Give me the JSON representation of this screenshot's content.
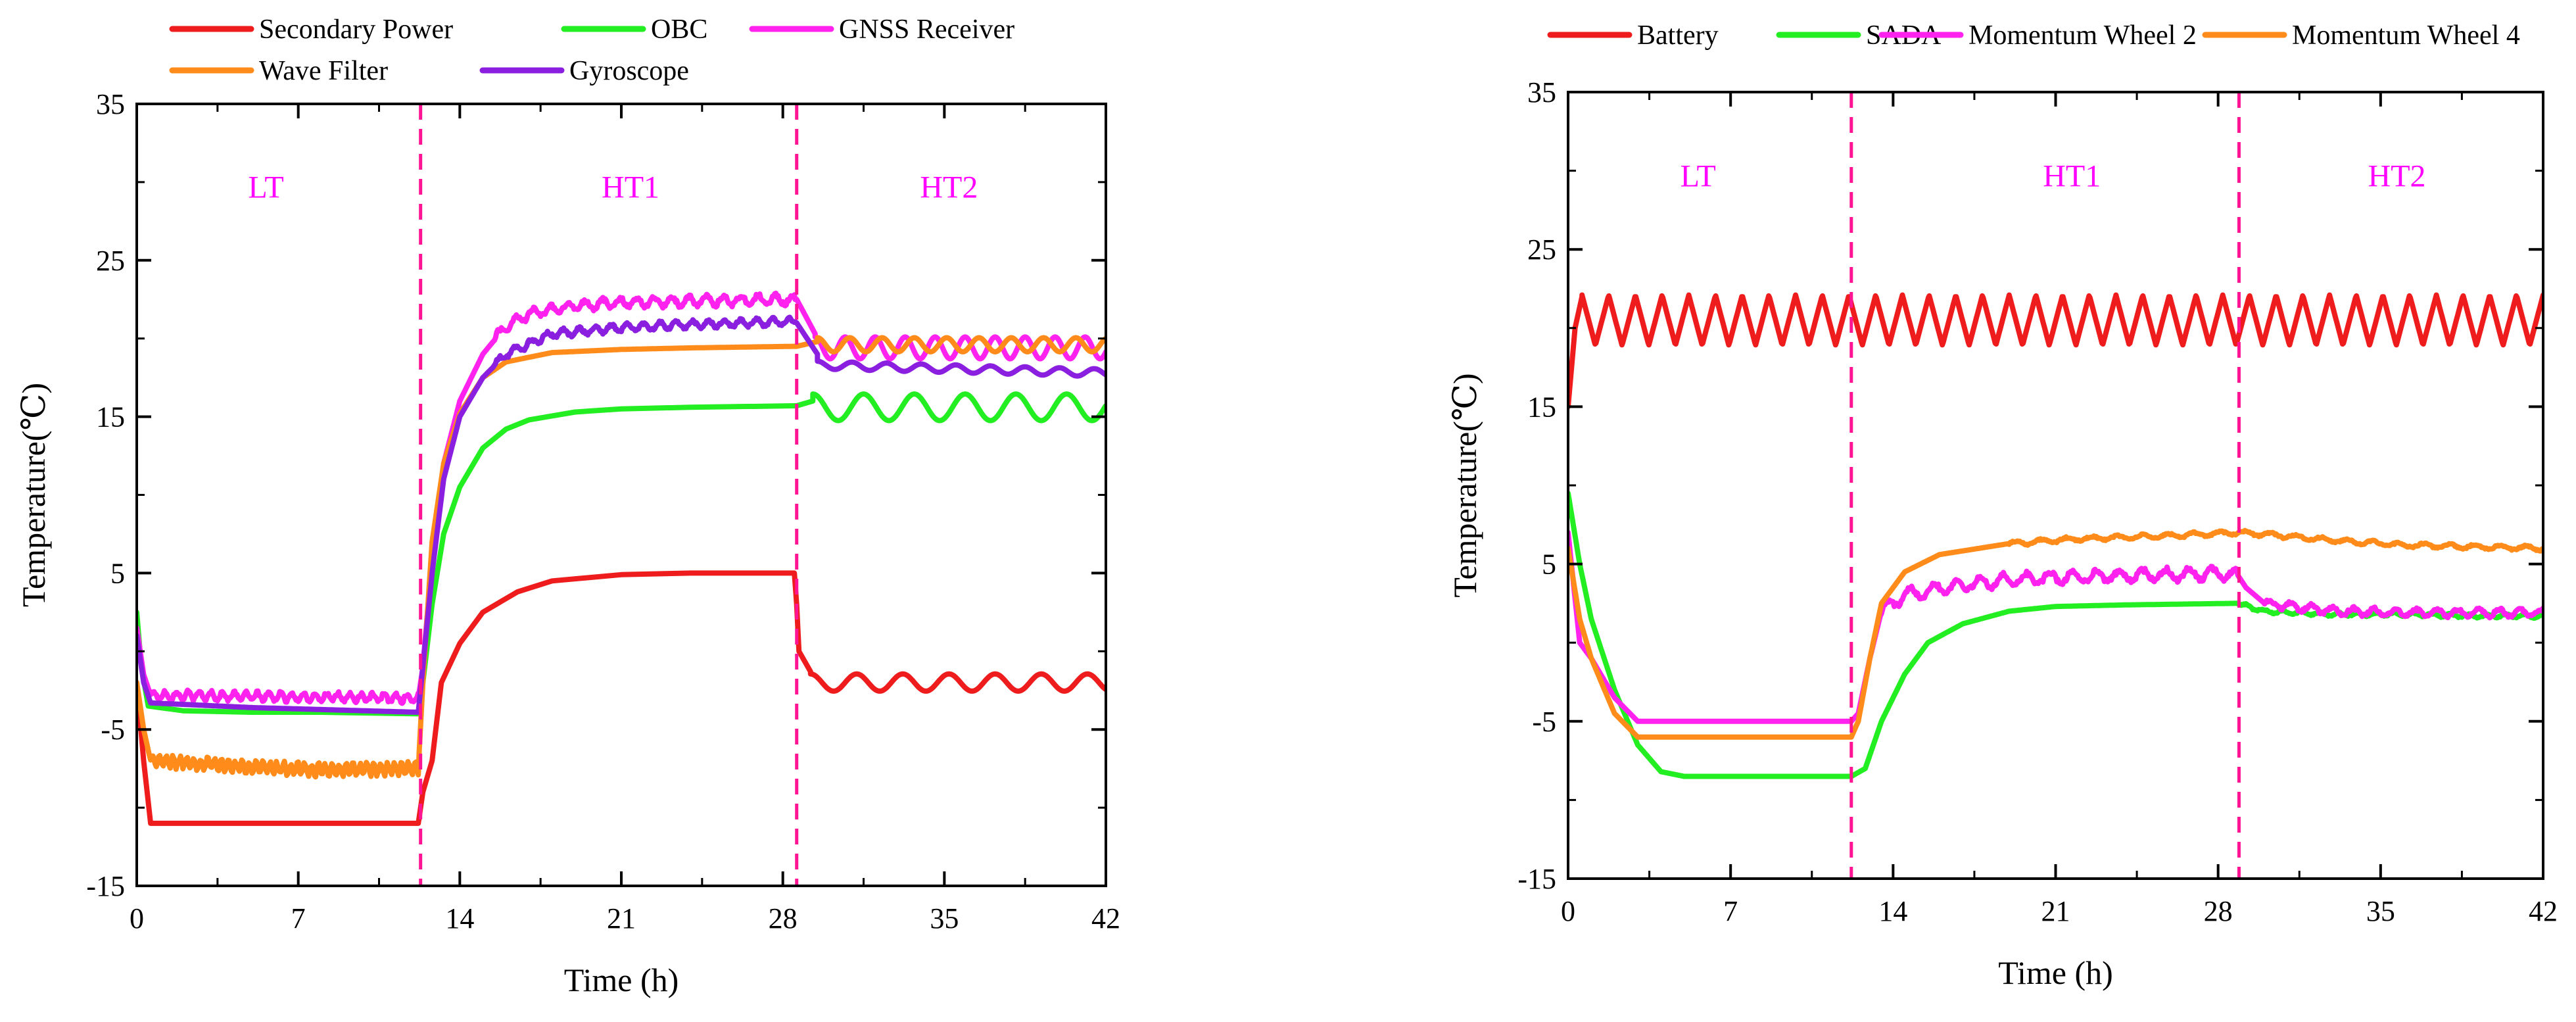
{
  "chart_data": [
    {
      "type": "line",
      "title": "",
      "xlabel": "Time (h)",
      "ylabel": "Temperature(℃)",
      "xlim": [
        0,
        42
      ],
      "ylim": [
        -15,
        35
      ],
      "xticks": [
        0,
        7,
        14,
        21,
        28,
        35,
        42
      ],
      "yticks": [
        -15,
        -5,
        5,
        15,
        25,
        35
      ],
      "xtick_labels": [
        "0",
        "7",
        "14",
        "21",
        "28",
        "35",
        "42"
      ],
      "ytick_labels": [
        "-15",
        "-5",
        "5",
        "15",
        "25",
        "35"
      ],
      "grid": false,
      "legend_position": "top",
      "phase_boundaries": [
        12.3,
        28.6
      ],
      "phase_boundary_color": "#ff1493",
      "phases": [
        {
          "label": "LT",
          "x": 5.6,
          "y": 29
        },
        {
          "label": "HT1",
          "x": 21.4,
          "y": 29
        },
        {
          "label": "HT2",
          "x": 35.2,
          "y": 29
        }
      ],
      "series": [
        {
          "name": "Secondary Power",
          "color": "#ee1c1c",
          "points": [
            [
              0,
              -2
            ],
            [
              0.3,
              -7
            ],
            [
              0.6,
              -11
            ],
            [
              5,
              -11
            ],
            [
              10,
              -11
            ],
            [
              12.2,
              -11
            ],
            [
              12.4,
              -9
            ],
            [
              12.8,
              -7
            ],
            [
              13.2,
              -2
            ],
            [
              14,
              0.5
            ],
            [
              15,
              2.5
            ],
            [
              16.5,
              3.8
            ],
            [
              18,
              4.5
            ],
            [
              21,
              4.9
            ],
            [
              24,
              5
            ],
            [
              28.5,
              5
            ]
          ],
          "post_break": [
            [
              28.6,
              3
            ],
            [
              28.7,
              0
            ],
            [
              29.2,
              -1.3
            ]
          ],
          "osc": {
            "x0": 29.2,
            "x1": 42,
            "mid": -2,
            "amp": 0.55,
            "period": 2.0,
            "noise": 0
          }
        },
        {
          "name": "OBC",
          "color": "#22ee22",
          "points": [
            [
              0,
              2.5
            ],
            [
              0.2,
              -1
            ],
            [
              0.5,
              -3.5
            ],
            [
              2,
              -3.8
            ],
            [
              5,
              -3.9
            ],
            [
              8,
              -3.9
            ],
            [
              12.2,
              -4
            ],
            [
              12.4,
              -2
            ],
            [
              12.8,
              3
            ],
            [
              13.3,
              7.5
            ],
            [
              14,
              10.5
            ],
            [
              15,
              13
            ],
            [
              16,
              14.2
            ],
            [
              17,
              14.8
            ],
            [
              19,
              15.3
            ],
            [
              21,
              15.5
            ],
            [
              24,
              15.6
            ],
            [
              28.5,
              15.7
            ]
          ],
          "post_break": [
            [
              28.6,
              15.7
            ],
            [
              29.3,
              16
            ]
          ],
          "osc": {
            "x0": 29.3,
            "x1": 42,
            "mid": 15.6,
            "amp": 0.85,
            "period": 2.2,
            "noise": 0
          }
        },
        {
          "name": "GNSS Receiver",
          "color": "#ff22ee",
          "points": [
            [
              0,
              1.5
            ],
            [
              0.3,
              -1.5
            ],
            [
              0.6,
              -2.8
            ],
            [
              12.2,
              -3
            ],
            [
              12.4,
              -1
            ],
            [
              12.8,
              6
            ],
            [
              13.3,
              12
            ],
            [
              14,
              16
            ],
            [
              15,
              19
            ],
            [
              16,
              20.8
            ],
            [
              17,
              21.6
            ],
            [
              19,
              22.1
            ],
            [
              21,
              22.3
            ],
            [
              24,
              22.4
            ],
            [
              28.5,
              22.5
            ]
          ],
          "post_break": [
            [
              28.6,
              22.5
            ],
            [
              29.4,
              20.3
            ]
          ],
          "osc": {
            "x0": 29.4,
            "x1": 42,
            "mid": 19.4,
            "amp": 0.7,
            "period": 1.3,
            "noise": 0
          },
          "noise_ranges": [
            [
              0.6,
              12.2,
              0.5,
              0.5
            ],
            [
              15.5,
              28.5,
              0.6,
              0.75
            ]
          ]
        },
        {
          "name": "Wave Filter",
          "color": "#ff8c1a",
          "points": [
            [
              0,
              -2
            ],
            [
              0.3,
              -5
            ],
            [
              0.6,
              -7
            ],
            [
              3,
              -7.2
            ],
            [
              5,
              -7.4
            ],
            [
              8,
              -7.6
            ],
            [
              12.2,
              -7.5
            ],
            [
              12.4,
              -2
            ],
            [
              12.8,
              7
            ],
            [
              13.3,
              12
            ],
            [
              14,
              15.2
            ],
            [
              15,
              17.5
            ],
            [
              16,
              18.5
            ],
            [
              18,
              19.1
            ],
            [
              21,
              19.3
            ],
            [
              24,
              19.4
            ],
            [
              28.5,
              19.5
            ]
          ],
          "post_break": [
            [
              28.6,
              19.5
            ],
            [
              29.5,
              19.8
            ]
          ],
          "osc": {
            "x0": 29.5,
            "x1": 42,
            "mid": 19.6,
            "amp": 0.45,
            "period": 1.4,
            "noise": 0
          },
          "noise_ranges": [
            [
              0.6,
              12.2,
              0.7,
              0.3
            ]
          ]
        },
        {
          "name": "Gyroscope",
          "color": "#8b1fe0",
          "points": [
            [
              0,
              1
            ],
            [
              0.3,
              -2
            ],
            [
              0.6,
              -3.3
            ],
            [
              5,
              -3.6
            ],
            [
              12.2,
              -3.9
            ],
            [
              12.4,
              -1
            ],
            [
              12.8,
              5
            ],
            [
              13.3,
              11
            ],
            [
              14,
              15
            ],
            [
              15,
              17.5
            ],
            [
              16,
              19
            ],
            [
              18,
              20.3
            ],
            [
              21,
              20.7
            ],
            [
              24,
              20.9
            ],
            [
              28.5,
              21.1
            ]
          ],
          "post_break": [
            [
              28.6,
              21
            ],
            [
              29.5,
              19
            ]
          ],
          "osc": {
            "x0": 29.5,
            "x1": 42,
            "mid": 18.3,
            "amp": 0.25,
            "period": 1.5,
            "noise": 0,
            "drift": -0.5
          },
          "noise_ranges": [
            [
              15.5,
              28.5,
              0.45,
              0.7
            ]
          ]
        }
      ]
    },
    {
      "type": "line",
      "title": "",
      "xlabel": "Time (h)",
      "ylabel": "Temperature(℃)",
      "xlim": [
        0,
        42
      ],
      "ylim": [
        -15,
        35
      ],
      "xticks": [
        0,
        7,
        14,
        21,
        28,
        35,
        42
      ],
      "yticks": [
        -15,
        -5,
        5,
        15,
        25,
        35
      ],
      "xtick_labels": [
        "0",
        "7",
        "14",
        "21",
        "28",
        "35",
        "42"
      ],
      "ytick_labels": [
        "-15",
        "-5",
        "5",
        "15",
        "25",
        "35"
      ],
      "grid": false,
      "legend_position": "top",
      "phase_boundaries": [
        12.2,
        28.9
      ],
      "phase_boundary_color": "#ff1493",
      "phases": [
        {
          "label": "LT",
          "x": 5.6,
          "y": 29
        },
        {
          "label": "HT1",
          "x": 21.7,
          "y": 29
        },
        {
          "label": "HT2",
          "x": 35.7,
          "y": 29
        }
      ],
      "series": [
        {
          "name": "Battery",
          "color": "#ee1c1c",
          "points": [
            [
              0,
              15
            ],
            [
              0.3,
              20
            ],
            [
              0.6,
              22
            ]
          ],
          "osc": {
            "x0": 0.6,
            "x1": 42,
            "mid": 20.5,
            "amp": 1.6,
            "period": 1.15,
            "noise": 0,
            "triangle": true
          }
        },
        {
          "name": "SADA",
          "color": "#22ee22",
          "points": [
            [
              0,
              9.5
            ],
            [
              0.5,
              5
            ],
            [
              1,
              1.5
            ],
            [
              2,
              -3
            ],
            [
              3,
              -6.5
            ],
            [
              4,
              -8.2
            ],
            [
              5,
              -8.5
            ],
            [
              8,
              -8.5
            ],
            [
              12.2,
              -8.5
            ],
            [
              12.8,
              -8
            ],
            [
              13.5,
              -5
            ],
            [
              14.5,
              -2
            ],
            [
              15.5,
              0
            ],
            [
              17,
              1.2
            ],
            [
              19,
              2
            ],
            [
              21,
              2.3
            ],
            [
              24,
              2.4
            ],
            [
              28.8,
              2.5
            ],
            [
              30,
              2
            ],
            [
              33,
              1.8
            ],
            [
              36,
              1.8
            ],
            [
              39,
              1.7
            ],
            [
              42,
              1.7
            ]
          ],
          "noise_ranges": [
            [
              29,
              42,
              0.2,
              0.8
            ]
          ]
        },
        {
          "name": "Momentum Wheel 2",
          "color": "#ff22ee",
          "points": [
            [
              0,
              7
            ],
            [
              0.5,
              0
            ],
            [
              1,
              -1
            ],
            [
              2,
              -3.5
            ],
            [
              3,
              -5
            ],
            [
              5,
              -5
            ],
            [
              12.2,
              -5
            ],
            [
              12.5,
              -4.5
            ],
            [
              13,
              -1
            ],
            [
              13.5,
              2
            ],
            [
              14.5,
              3
            ],
            [
              16,
              3.5
            ],
            [
              19,
              4
            ],
            [
              22,
              4.2
            ],
            [
              28.8,
              4.4
            ],
            [
              29.2,
              3.5
            ],
            [
              30,
              2.5
            ],
            [
              33,
              2
            ],
            [
              36,
              1.9
            ],
            [
              42,
              1.9
            ]
          ],
          "noise_ranges": [
            [
              13.5,
              28.8,
              0.7,
              1.0
            ],
            [
              30,
              42,
              0.45,
              0.9
            ]
          ]
        },
        {
          "name": "Momentum Wheel 4",
          "color": "#ff8c1a",
          "points": [
            [
              0,
              6
            ],
            [
              0.5,
              1.5
            ],
            [
              1,
              -1
            ],
            [
              2,
              -4.5
            ],
            [
              3,
              -6
            ],
            [
              5,
              -6
            ],
            [
              12.2,
              -6
            ],
            [
              12.5,
              -5
            ],
            [
              13,
              -1
            ],
            [
              13.5,
              2.5
            ],
            [
              14.5,
              4.5
            ],
            [
              16,
              5.6
            ],
            [
              19,
              6.3
            ],
            [
              22,
              6.6
            ],
            [
              26,
              6.8
            ],
            [
              28.8,
              7
            ],
            [
              30,
              6.9
            ],
            [
              33,
              6.5
            ],
            [
              36,
              6.2
            ],
            [
              39,
              6.1
            ],
            [
              42,
              6
            ]
          ],
          "noise_ranges": [
            [
              19,
              42,
              0.25,
              1.1
            ]
          ]
        }
      ]
    }
  ]
}
